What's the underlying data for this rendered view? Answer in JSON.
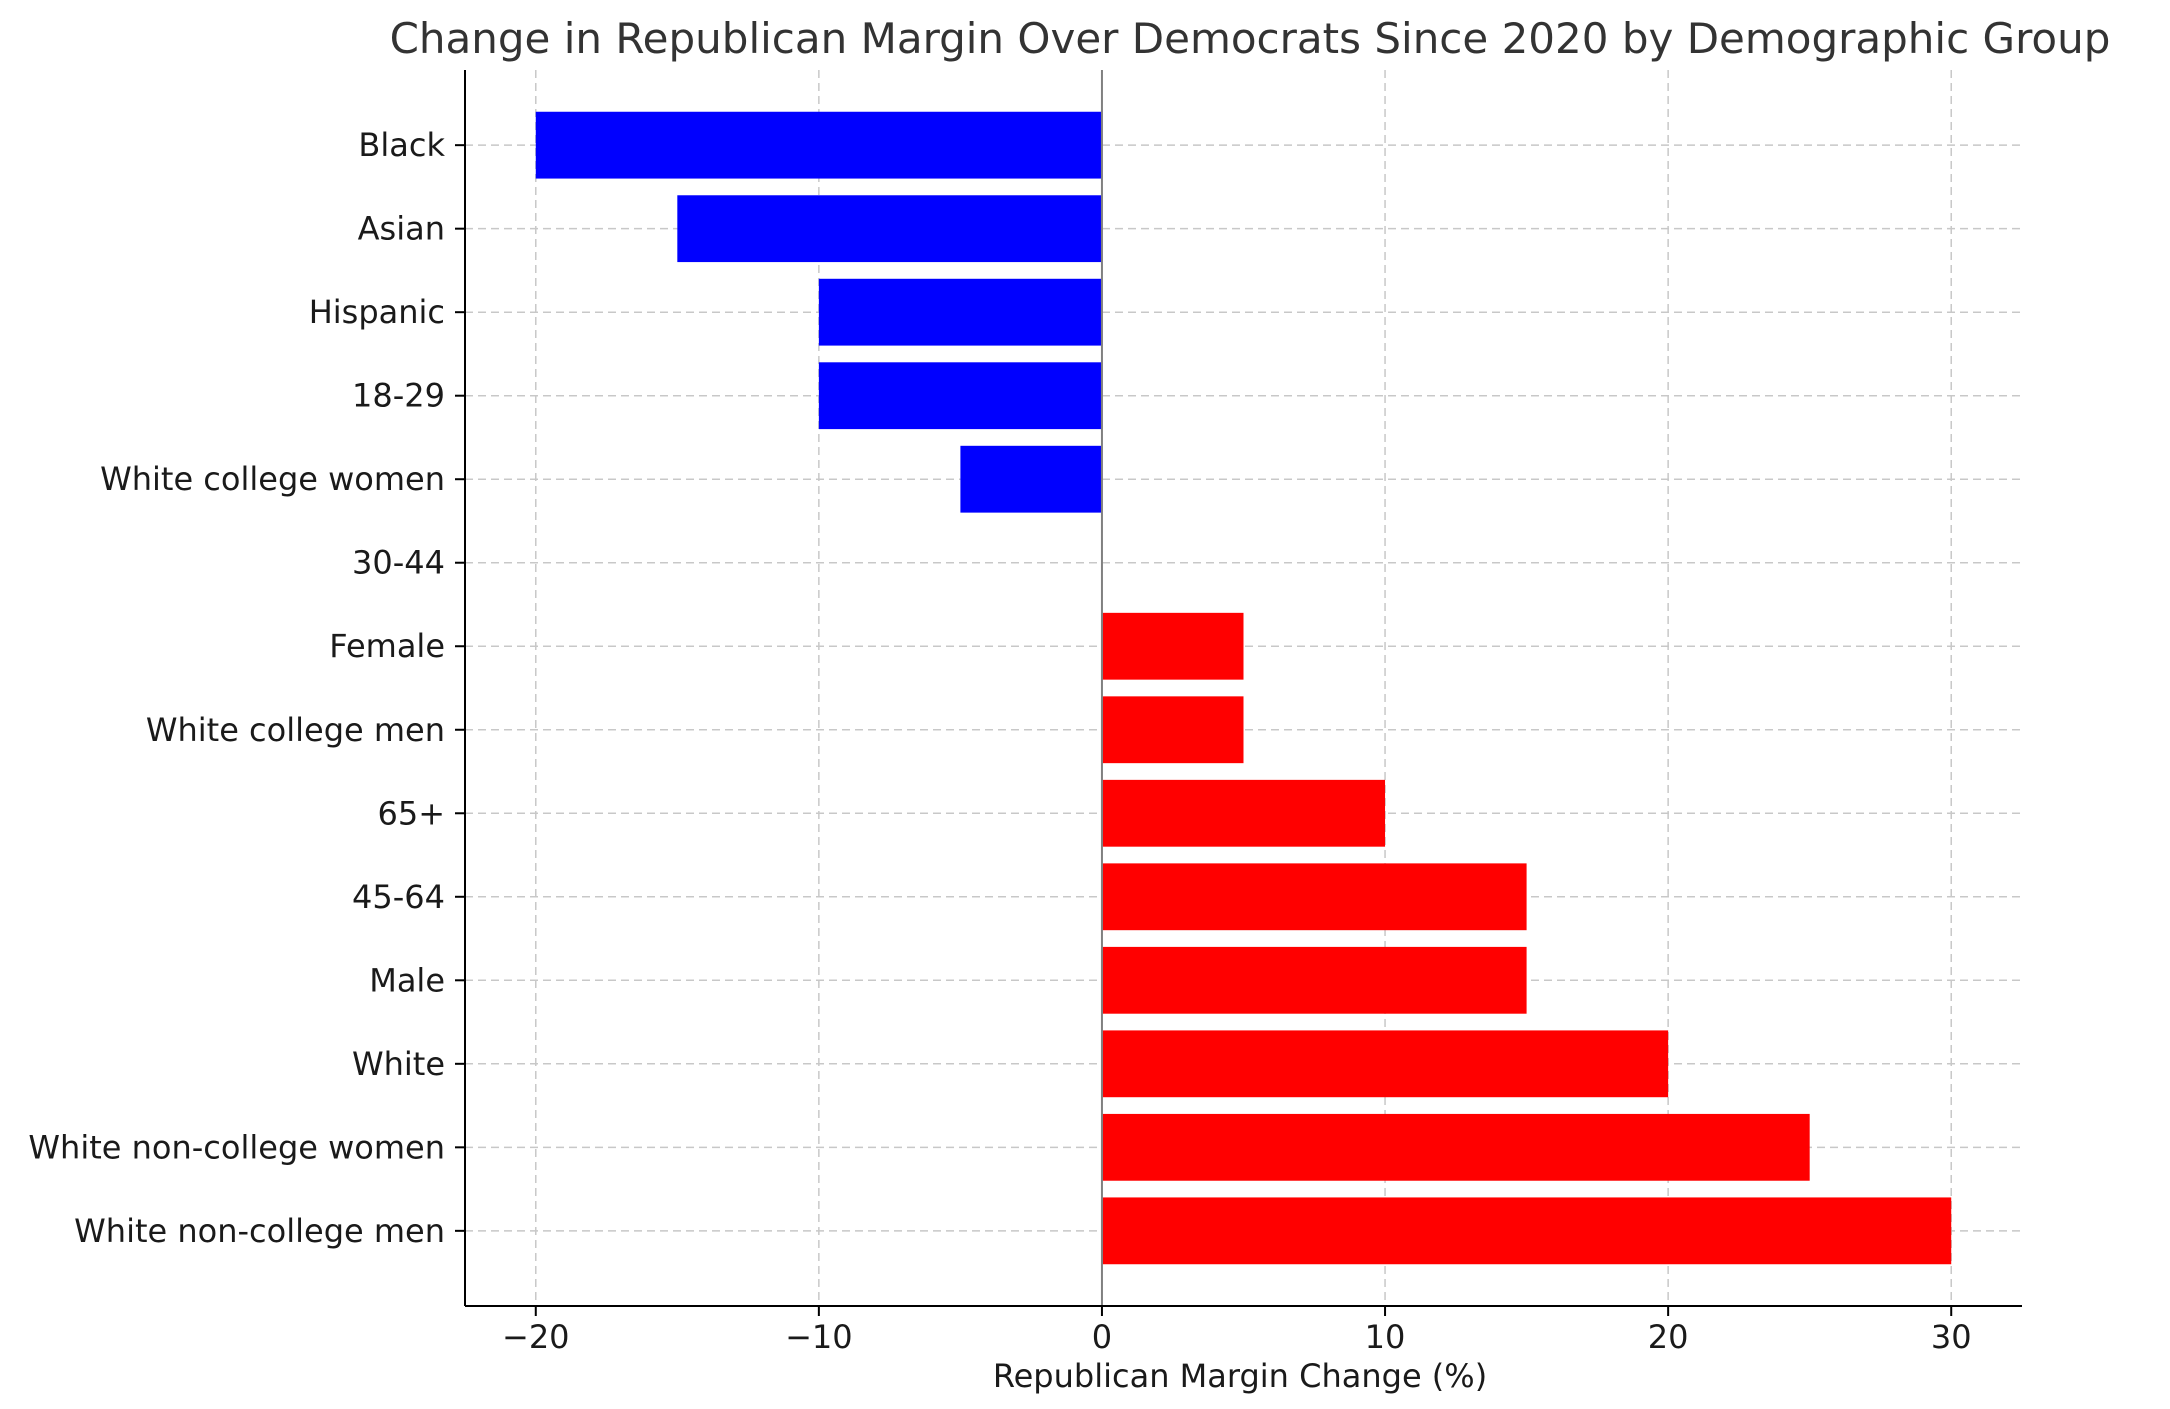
{
  "chart_data": {
    "type": "bar",
    "orientation": "horizontal",
    "title": "Change in Republican Margin Over Democrats Since 2020 by Demographic Group",
    "xlabel": "Republican Margin Change (%)",
    "ylabel": "",
    "xlim": [
      -22.5,
      32.5
    ],
    "xticks": [
      -20,
      -10,
      0,
      10,
      20,
      30
    ],
    "xtick_labels": [
      "−20",
      "−10",
      "0",
      "10",
      "20",
      "30"
    ],
    "grid": true,
    "categories": [
      "Black",
      "Asian",
      "Hispanic",
      "18-29",
      "White college women",
      "30-44",
      "Female",
      "White college men",
      "65+",
      "45-64",
      "Male",
      "White",
      "White non-college women",
      "White non-college men"
    ],
    "values": [
      -20,
      -15,
      -10,
      -10,
      -5,
      0,
      5,
      5,
      10,
      15,
      15,
      20,
      25,
      30
    ],
    "colors": {
      "negative": "#0000ff",
      "positive": "#ff0000",
      "zero_line": "#808080"
    }
  }
}
